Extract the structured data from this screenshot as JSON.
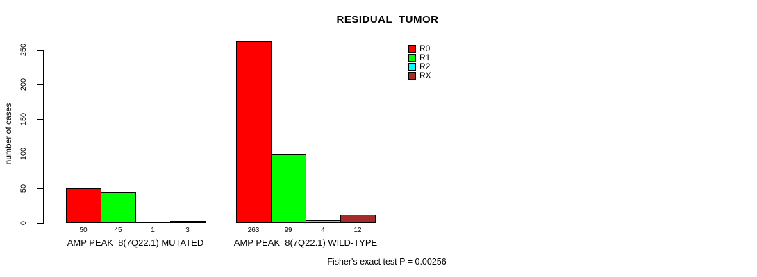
{
  "chart_data": {
    "type": "bar",
    "title": "RESIDUAL_TUMOR",
    "ylabel": "number of cases",
    "ylim": [
      0,
      250
    ],
    "yticks": [
      0,
      50,
      100,
      150,
      200,
      250
    ],
    "grid": false,
    "legend_position": "top-right",
    "categories": [
      "AMP PEAK  8(7Q22.1) MUTATED",
      "AMP PEAK  8(7Q22.1) WILD-TYPE"
    ],
    "series": [
      {
        "name": "R0",
        "color": "#FF0000",
        "values": [
          50,
          263
        ]
      },
      {
        "name": "R1",
        "color": "#00FF00",
        "values": [
          45,
          99
        ]
      },
      {
        "name": "R2",
        "color": "#00FFFF",
        "values": [
          1,
          4
        ]
      },
      {
        "name": "RX",
        "color": "#A52A2A",
        "values": [
          3,
          12
        ]
      }
    ],
    "annotation": "Fisher's exact test P = 0.00256"
  }
}
